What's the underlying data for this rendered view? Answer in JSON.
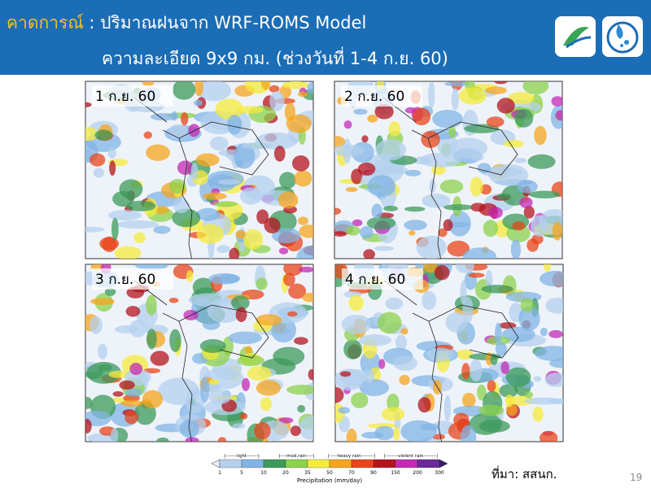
{
  "header": {
    "title_highlight": "คาดการณ์",
    "title_rest": " : ปริมาณฝนจาก WRF-ROMS Model",
    "subtitle": "ความละเอียด 9x9 กม. (ช่วงวันที่ 1-4 ก.ย. 60)"
  },
  "maps": [
    {
      "label": "1 ก.ย. 60"
    },
    {
      "label": "2 ก.ย. 60"
    },
    {
      "label": "3 ก.ย. 60"
    },
    {
      "label": "4 ก.ย. 60"
    }
  ],
  "colorbar": {
    "categories": [
      "|-------light-------|",
      "|----mod.rain----|",
      "|-----heavy rain--------|",
      "|--------violent rain--------|"
    ],
    "ticks": [
      1,
      5,
      10,
      20,
      35,
      50,
      70,
      90,
      150,
      200,
      300
    ],
    "colors": [
      "#e6eef8",
      "#b4d0ee",
      "#82b4e4",
      "#3c9a5a",
      "#8cd24c",
      "#f5eb3c",
      "#f5a51e",
      "#e8461a",
      "#b4141e",
      "#c42ab4",
      "#6a2a9a",
      "#3a1a6a"
    ],
    "label": "Precipitation (mm/day)"
  },
  "footer": {
    "source": "ที่มา: สสนก.",
    "page": "19"
  }
}
